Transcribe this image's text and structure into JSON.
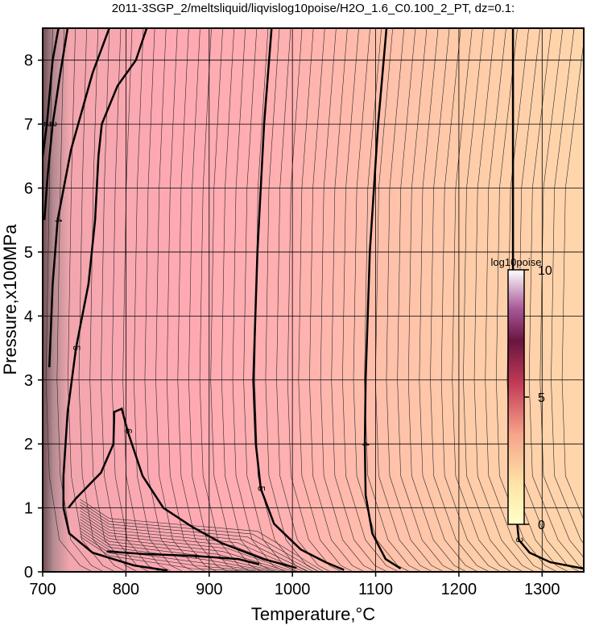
{
  "chart_data": {
    "type": "contour",
    "title": "2011-3SGP_2/meltsliquid/liqvislog10poise/H2O_1.6_C0.100_2_PT, dz=0.1:",
    "xlabel": "Temperature,°C",
    "ylabel": "Pressure,x100MPa",
    "xlim": [
      700,
      1350
    ],
    "ylim": [
      0,
      8.5
    ],
    "xticks": [
      700,
      800,
      900,
      1000,
      1100,
      1200,
      1300
    ],
    "yticks": [
      0,
      1,
      2,
      3,
      4,
      5,
      6,
      7,
      8
    ],
    "grid": true,
    "colors": {
      "low_viscosity": "#ffd2a8",
      "mid_viscosity": "#ffa8b2",
      "high_viscosity": "#6f4d53",
      "grid": "#000000"
    },
    "colorbar": {
      "title": "log10poise",
      "range": [
        0,
        10
      ],
      "ticks": [
        0,
        5,
        10
      ],
      "colors": [
        "#ffffc8",
        "#ffd9a0",
        "#cc3b4f",
        "#5a0a3a",
        "#ffffff"
      ]
    },
    "contour_levels_labeled": [
      {
        "level": 3,
        "label": "3",
        "points": [
          [
            1265,
            8.5
          ],
          [
            1265,
            4.5
          ],
          [
            1266,
            2.0
          ],
          [
            1268,
            1.0
          ],
          [
            1272,
            0.5
          ],
          [
            1285,
            0.3
          ],
          [
            1310,
            0.15
          ],
          [
            1350,
            0.05
          ]
        ]
      },
      {
        "level": 4,
        "label": "4",
        "points": [
          [
            1113,
            8.5
          ],
          [
            1103,
            7.0
          ],
          [
            1093,
            5.0
          ],
          [
            1088,
            3.0
          ],
          [
            1087,
            2.0
          ],
          [
            1088,
            1.2
          ],
          [
            1096,
            0.6
          ],
          [
            1112,
            0.2
          ],
          [
            1130,
            0.05
          ]
        ]
      },
      {
        "level": 5,
        "label": "5",
        "points": [
          [
            975,
            8.5
          ],
          [
            966,
            7.0
          ],
          [
            958,
            5.0
          ],
          [
            953,
            3.0
          ],
          [
            956,
            2.0
          ],
          [
            962,
            1.3
          ],
          [
            978,
            0.75
          ],
          [
            1010,
            0.35
          ],
          [
            1040,
            0.15
          ],
          [
            1062,
            0.03
          ]
        ]
      },
      {
        "level": 5,
        "label": "5",
        "points": [
          [
            825,
            8.5
          ],
          [
            812,
            8.0
          ],
          [
            790,
            7.6
          ],
          [
            771,
            7.0
          ],
          [
            767,
            6.5
          ],
          [
            763,
            5.5
          ],
          [
            755,
            4.5
          ],
          [
            740,
            3.5
          ],
          [
            730,
            2.5
          ],
          [
            725,
            1.5
          ],
          [
            725,
            1.0
          ],
          [
            732,
            0.6
          ],
          [
            760,
            0.3
          ],
          [
            810,
            0.1
          ],
          [
            850,
            0.02
          ]
        ]
      },
      {
        "level": 6,
        "label": "6",
        "points": [
          [
            731,
            1.0
          ],
          [
            740,
            1.15
          ],
          [
            770,
            1.55
          ],
          [
            785,
            2.0
          ],
          [
            786,
            2.5
          ],
          [
            795,
            2.55
          ],
          [
            802,
            2.2
          ],
          [
            820,
            1.5
          ],
          [
            845,
            1.0
          ],
          [
            880,
            0.7
          ],
          [
            915,
            0.45
          ],
          [
            965,
            0.2
          ],
          [
            1005,
            0.06
          ]
        ]
      },
      {
        "level": 7,
        "label": "7",
        "points": [
          [
            777,
            0.32
          ],
          [
            820,
            0.28
          ],
          [
            880,
            0.25
          ],
          [
            935,
            0.2
          ],
          [
            960,
            0.12
          ]
        ]
      },
      {
        "level": 4,
        "label": "4",
        "points": [
          [
            780,
            8.5
          ],
          [
            760,
            7.8
          ],
          [
            734,
            6.6
          ],
          [
            718,
            5.5
          ],
          [
            712,
            4.5
          ],
          [
            708,
            3.2
          ]
        ]
      },
      {
        "level": 3,
        "label": "3",
        "points": [
          [
            730,
            8.5
          ],
          [
            720,
            7.7
          ],
          [
            712,
            7.0
          ],
          [
            706,
            6.2
          ],
          [
            702,
            5.5
          ]
        ]
      },
      {
        "level": 2,
        "label": "2",
        "points": [
          [
            719,
            8.5
          ],
          [
            712,
            8.0
          ],
          [
            705,
            7.0
          ],
          [
            700,
            6.5
          ]
        ]
      }
    ],
    "text_labels": [
      "3",
      "4",
      "4",
      "4",
      "5",
      "5",
      "5",
      "5",
      "6",
      "6",
      "7",
      "7",
      "1",
      "2",
      "3",
      "3",
      "2",
      "1",
      "1"
    ]
  }
}
